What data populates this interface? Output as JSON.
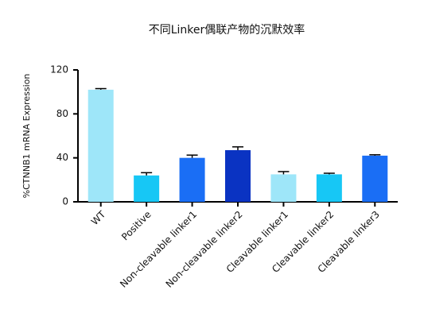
{
  "chart_data": {
    "type": "bar",
    "title": "不同Linker偶联产物的沉默效率",
    "y_label": "%CTNNB1 mRNA Expression",
    "categories": [
      "WT",
      "Positive",
      "Non-cleavable linker1",
      "Non-cleavable linker2",
      "Cleavable linker1",
      "Cleavable linker2",
      "Cleavable linker3"
    ],
    "values": [
      102,
      24,
      40,
      47,
      25,
      25,
      42
    ],
    "errors": [
      1,
      2.5,
      2.5,
      3,
      2.5,
      1,
      0.8
    ],
    "colors": [
      "#9ee6f9",
      "#17c7f5",
      "#1a6ef5",
      "#0a33c2",
      "#9ee6f9",
      "#17c7f5",
      "#1a6ef5"
    ],
    "ylim": [
      0,
      120
    ],
    "yticks": [
      0,
      40,
      80,
      120
    ]
  }
}
